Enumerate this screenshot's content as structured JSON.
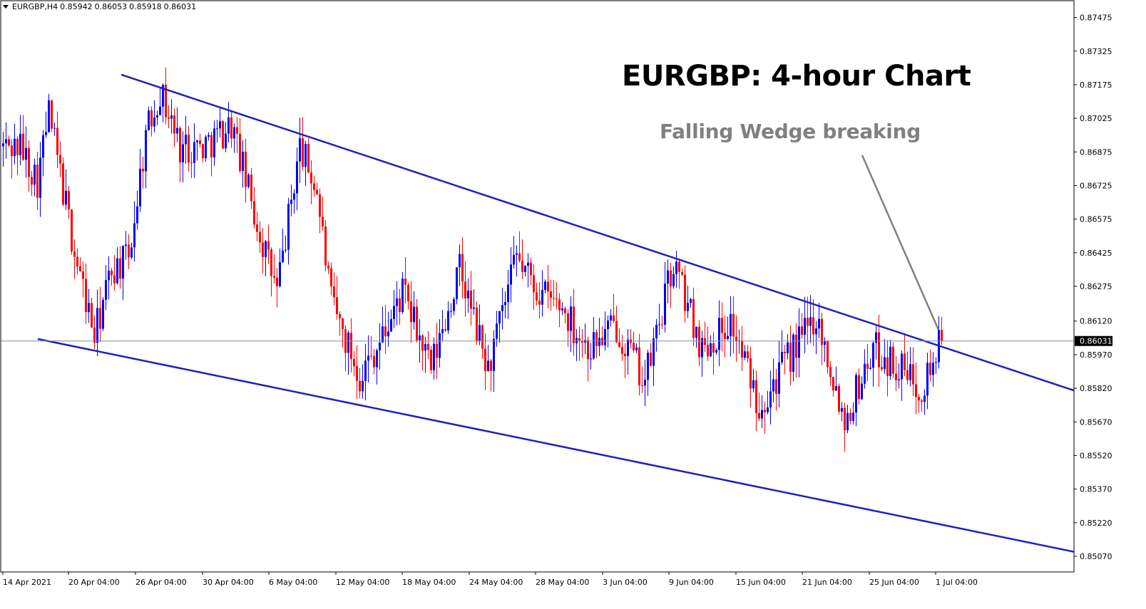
{
  "header": {
    "symbol": "EURGBP,H4",
    "open": "0.85942",
    "high": "0.86053",
    "low": "0.85918",
    "close": "0.86031"
  },
  "annotations": {
    "title": "EURGBP: 4-hour Chart",
    "pattern_label": "Falling Wedge breaking"
  },
  "colors": {
    "bull": "#0000ff",
    "bear": "#ff0000",
    "trendline": "#1f1fbf",
    "arrow": "#808080",
    "axis": "#000000",
    "price_line": "#7f8fa6"
  },
  "chart_data": {
    "type": "candlestick",
    "symbol": "EURGBP",
    "timeframe": "H4",
    "ylim": [
      0.85,
      0.8755
    ],
    "y_ticks": [
      "0.87475",
      "0.87325",
      "0.87175",
      "0.87025",
      "0.86875",
      "0.86725",
      "0.86575",
      "0.86425",
      "0.86275",
      "0.86120",
      "0.85970",
      "0.85820",
      "0.85670",
      "0.85520",
      "0.85370",
      "0.85220",
      "0.85070"
    ],
    "x_ticks": [
      "14 Apr 2021",
      "20 Apr 04:00",
      "26 Apr 04:00",
      "30 Apr 04:00",
      "6 May 04:00",
      "12 May 04:00",
      "18 May 04:00",
      "24 May 04:00",
      "28 May 04:00",
      "3 Jun 04:00",
      "9 Jun 04:00",
      "15 Jun 04:00",
      "21 Jun 04:00",
      "25 Jun 04:00",
      "1 Jul 04:00"
    ],
    "current_price": "0.86031",
    "candle_count": 330,
    "anchors": [
      [
        0,
        0.869
      ],
      [
        6,
        0.869
      ],
      [
        12,
        0.8675
      ],
      [
        16,
        0.8705
      ],
      [
        25,
        0.8643
      ],
      [
        32,
        0.8605
      ],
      [
        38,
        0.8635
      ],
      [
        44,
        0.864
      ],
      [
        50,
        0.8695
      ],
      [
        55,
        0.8715
      ],
      [
        62,
        0.869
      ],
      [
        70,
        0.869
      ],
      [
        80,
        0.87
      ],
      [
        88,
        0.866
      ],
      [
        96,
        0.8625
      ],
      [
        104,
        0.869
      ],
      [
        110,
        0.867
      ],
      [
        115,
        0.862
      ],
      [
        125,
        0.8588
      ],
      [
        133,
        0.8605
      ],
      [
        140,
        0.8625
      ],
      [
        150,
        0.859
      ],
      [
        160,
        0.8635
      ],
      [
        170,
        0.859
      ],
      [
        180,
        0.864
      ],
      [
        188,
        0.8625
      ],
      [
        196,
        0.8618
      ],
      [
        205,
        0.86
      ],
      [
        215,
        0.861
      ],
      [
        225,
        0.8585
      ],
      [
        235,
        0.8638
      ],
      [
        245,
        0.86
      ],
      [
        255,
        0.8612
      ],
      [
        265,
        0.8575
      ],
      [
        275,
        0.8595
      ],
      [
        285,
        0.8615
      ],
      [
        295,
        0.8568
      ],
      [
        305,
        0.86
      ],
      [
        315,
        0.859
      ],
      [
        322,
        0.8583
      ],
      [
        329,
        0.86031
      ]
    ],
    "trendlines": [
      {
        "name": "upper",
        "points": [
          [
            "14 Apr 2021+27",
            0.8722
          ],
          [
            "1 Jul+30",
            0.8581
          ]
        ]
      },
      {
        "name": "lower",
        "points": [
          [
            "14 Apr 2021+9",
            0.8604
          ],
          [
            "1 Jul+30",
            0.8509
          ]
        ]
      }
    ]
  }
}
